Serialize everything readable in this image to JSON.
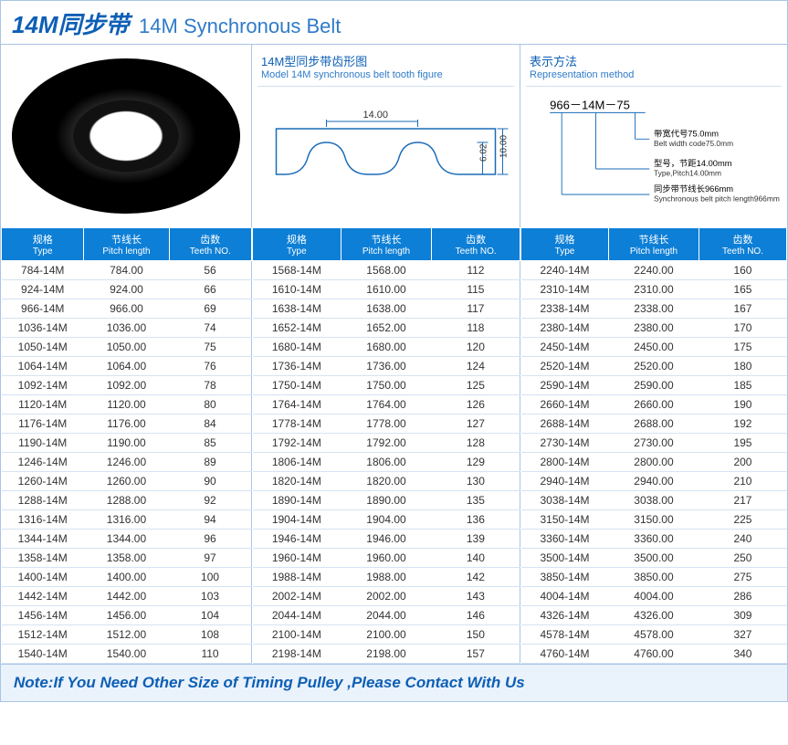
{
  "title": {
    "cn": "14M同步带",
    "en": "14M Synchronous Belt"
  },
  "section_tooth": {
    "cn": "14M型同步带齿形图",
    "en": "Model 14M synchronous belt tooth figure"
  },
  "section_rep": {
    "cn": "表示方法",
    "en": "Representation method"
  },
  "tooth_dims": {
    "pitch": "14.00",
    "height": "6.02",
    "total_h": "10.00"
  },
  "rep": {
    "code": "966－14M－75",
    "l1_cn": "带宽代号75.0mm",
    "l1_en": "Belt width code75.0mm",
    "l2_cn": "型号，节距14.00mm",
    "l2_en": "Type,Pitch14.00mm",
    "l3_cn": "同步带节线长966mm",
    "l3_en": "Synchronous belt pitch length966mm"
  },
  "headers": {
    "type_cn": "规格",
    "type_en": "Type",
    "pitch_cn": "节线长",
    "pitch_en": "Pitch length",
    "teeth_cn": "齿数",
    "teeth_en": "Teeth NO."
  },
  "table1": [
    [
      "784-14M",
      "784.00",
      "56"
    ],
    [
      "924-14M",
      "924.00",
      "66"
    ],
    [
      "966-14M",
      "966.00",
      "69"
    ],
    [
      "1036-14M",
      "1036.00",
      "74"
    ],
    [
      "1050-14M",
      "1050.00",
      "75"
    ],
    [
      "1064-14M",
      "1064.00",
      "76"
    ],
    [
      "1092-14M",
      "1092.00",
      "78"
    ],
    [
      "1120-14M",
      "1120.00",
      "80"
    ],
    [
      "1176-14M",
      "1176.00",
      "84"
    ],
    [
      "1190-14M",
      "1190.00",
      "85"
    ],
    [
      "1246-14M",
      "1246.00",
      "89"
    ],
    [
      "1260-14M",
      "1260.00",
      "90"
    ],
    [
      "1288-14M",
      "1288.00",
      "92"
    ],
    [
      "1316-14M",
      "1316.00",
      "94"
    ],
    [
      "1344-14M",
      "1344.00",
      "96"
    ],
    [
      "1358-14M",
      "1358.00",
      "97"
    ],
    [
      "1400-14M",
      "1400.00",
      "100"
    ],
    [
      "1442-14M",
      "1442.00",
      "103"
    ],
    [
      "1456-14M",
      "1456.00",
      "104"
    ],
    [
      "1512-14M",
      "1512.00",
      "108"
    ],
    [
      "1540-14M",
      "1540.00",
      "110"
    ]
  ],
  "table2": [
    [
      "1568-14M",
      "1568.00",
      "112"
    ],
    [
      "1610-14M",
      "1610.00",
      "115"
    ],
    [
      "1638-14M",
      "1638.00",
      "117"
    ],
    [
      "1652-14M",
      "1652.00",
      "118"
    ],
    [
      "1680-14M",
      "1680.00",
      "120"
    ],
    [
      "1736-14M",
      "1736.00",
      "124"
    ],
    [
      "1750-14M",
      "1750.00",
      "125"
    ],
    [
      "1764-14M",
      "1764.00",
      "126"
    ],
    [
      "1778-14M",
      "1778.00",
      "127"
    ],
    [
      "1792-14M",
      "1792.00",
      "128"
    ],
    [
      "1806-14M",
      "1806.00",
      "129"
    ],
    [
      "1820-14M",
      "1820.00",
      "130"
    ],
    [
      "1890-14M",
      "1890.00",
      "135"
    ],
    [
      "1904-14M",
      "1904.00",
      "136"
    ],
    [
      "1946-14M",
      "1946.00",
      "139"
    ],
    [
      "1960-14M",
      "1960.00",
      "140"
    ],
    [
      "1988-14M",
      "1988.00",
      "142"
    ],
    [
      "2002-14M",
      "2002.00",
      "143"
    ],
    [
      "2044-14M",
      "2044.00",
      "146"
    ],
    [
      "2100-14M",
      "2100.00",
      "150"
    ],
    [
      "2198-14M",
      "2198.00",
      "157"
    ]
  ],
  "table3": [
    [
      "2240-14M",
      "2240.00",
      "160"
    ],
    [
      "2310-14M",
      "2310.00",
      "165"
    ],
    [
      "2338-14M",
      "2338.00",
      "167"
    ],
    [
      "2380-14M",
      "2380.00",
      "170"
    ],
    [
      "2450-14M",
      "2450.00",
      "175"
    ],
    [
      "2520-14M",
      "2520.00",
      "180"
    ],
    [
      "2590-14M",
      "2590.00",
      "185"
    ],
    [
      "2660-14M",
      "2660.00",
      "190"
    ],
    [
      "2688-14M",
      "2688.00",
      "192"
    ],
    [
      "2730-14M",
      "2730.00",
      "195"
    ],
    [
      "2800-14M",
      "2800.00",
      "200"
    ],
    [
      "2940-14M",
      "2940.00",
      "210"
    ],
    [
      "3038-14M",
      "3038.00",
      "217"
    ],
    [
      "3150-14M",
      "3150.00",
      "225"
    ],
    [
      "3360-14M",
      "3360.00",
      "240"
    ],
    [
      "3500-14M",
      "3500.00",
      "250"
    ],
    [
      "3850-14M",
      "3850.00",
      "275"
    ],
    [
      "4004-14M",
      "4004.00",
      "286"
    ],
    [
      "4326-14M",
      "4326.00",
      "309"
    ],
    [
      "4578-14M",
      "4578.00",
      "327"
    ],
    [
      "4760-14M",
      "4760.00",
      "340"
    ]
  ],
  "footer": "Note:If You Need Other Size of Timing Pulley ,Please Contact With Us",
  "colors": {
    "header_bg": "#0d7fd6",
    "title": "#0d5fb5",
    "border": "#a8c5e6",
    "row_border": "#d5e3f2",
    "footer_bg": "#eaf2fb"
  }
}
